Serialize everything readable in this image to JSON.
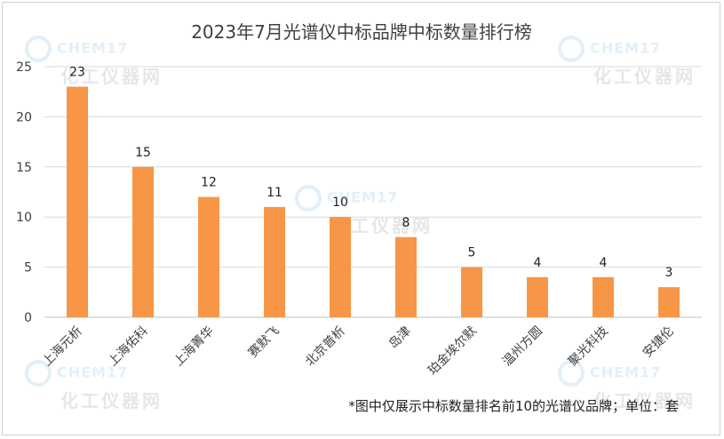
{
  "chart_data": {
    "type": "bar",
    "title": "2023年7月光谱仪中标品牌中标数量排行榜",
    "categories": [
      "上海元析",
      "上海佑科",
      "上海菁华",
      "赛默飞",
      "北京普析",
      "岛津",
      "珀金埃尔默",
      "温州方圆",
      "聚光科技",
      "安捷伦"
    ],
    "values": [
      23,
      15,
      12,
      11,
      10,
      8,
      5,
      4,
      4,
      3
    ],
    "ylim": [
      0,
      25
    ],
    "yticks": [
      0,
      5,
      10,
      15,
      20,
      25
    ],
    "grid": true,
    "bar_color": "#F79646",
    "xlabel": "",
    "ylabel": ""
  },
  "footnote": "*图中仅展示中标数量排名前10的光谱仪品牌；单位：套",
  "watermark": {
    "en": "CHEM17",
    "cn": "化工仪器网"
  }
}
